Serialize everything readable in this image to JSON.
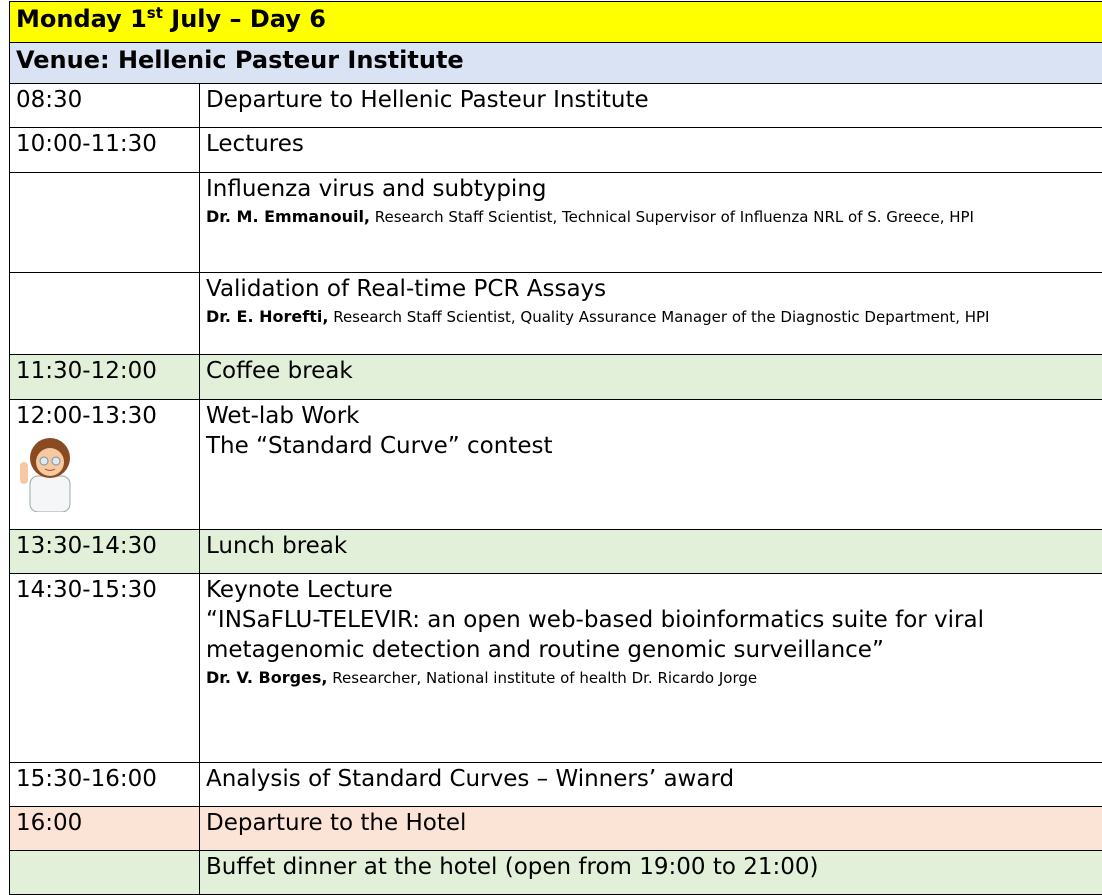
{
  "header": {
    "title_pre": "Monday 1",
    "title_sup": "st",
    "title_post": " July – Day 6",
    "venue": "Venue: Hellenic Pasteur Institute"
  },
  "rows": [
    {
      "time": "08:30",
      "title": "Departure to Hellenic Pasteur Institute"
    },
    {
      "time": "10:00-11:30",
      "title": "Lectures"
    },
    {
      "title": "Influenza virus and subtyping",
      "speaker": "Dr. M. Emmanouil,",
      "affiliation": "Research Staff Scientist, Technical Supervisor of Influenza NRL of S. Greece, HPI"
    },
    {
      "title": "Validation of Real-time PCR Assays",
      "speaker": "Dr. E. Horefti,",
      "affiliation": "Research Staff Scientist, Quality Assurance Manager of the Diagnostic Department, HPI"
    },
    {
      "time": "11:30-12:00",
      "title": "Coffee break",
      "color": "#e2efd9"
    },
    {
      "time": "12:00-13:30",
      "title": "Wet-lab Work",
      "subtitle": "The “Standard Curve” contest"
    },
    {
      "time": "13:30-14:30",
      "title": "Lunch break",
      "color": "#e2efd9"
    },
    {
      "time": "14:30-15:30",
      "title": "Keynote Lecture",
      "subtitle": "“INSaFLU-TELEVIR: an open web-based bioinformatics suite for viral metagenomic detection and routine genomic surveillance”",
      "speaker": "Dr. V. Borges,",
      "affiliation": "Researcher, National institute of health Dr. Ricardo Jorge"
    },
    {
      "time": "15:30-16:00",
      "title": "Analysis of Standard Curves – Winners’ award"
    },
    {
      "time": "16:00",
      "title": "Departure to the Hotel",
      "color": "#fbe4d5"
    },
    {
      "title": "Buffet dinner at the hotel (open from 19:00 to 21:00)",
      "color": "#e2efd9"
    }
  ]
}
